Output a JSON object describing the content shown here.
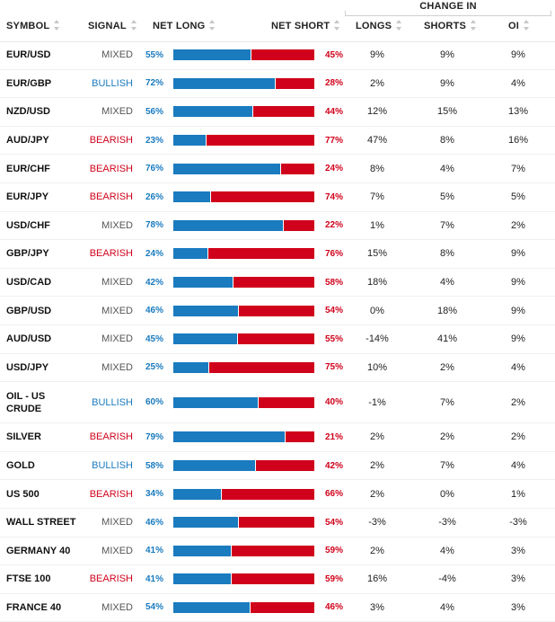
{
  "header": {
    "change_in": "CHANGE IN",
    "symbol": "SYMBOL",
    "signal": "SIGNAL",
    "net_long": "NET LONG",
    "net_short": "NET SHORT",
    "longs": "LONGS",
    "shorts": "SHORTS",
    "oi": "OI"
  },
  "colors": {
    "long": "#1a7bbf",
    "short": "#d0021b",
    "mixed": "#555555"
  },
  "rows": [
    {
      "symbol": "EUR/USD",
      "signal": "MIXED",
      "long": 55,
      "long_label": "55%",
      "short_label": "45%",
      "longs": "9%",
      "shorts": "9%",
      "oi": "9%"
    },
    {
      "symbol": "EUR/GBP",
      "signal": "BULLISH",
      "long": 72,
      "long_label": "72%",
      "short_label": "28%",
      "longs": "2%",
      "shorts": "9%",
      "oi": "4%"
    },
    {
      "symbol": "NZD/USD",
      "signal": "MIXED",
      "long": 56,
      "long_label": "56%",
      "short_label": "44%",
      "longs": "12%",
      "shorts": "15%",
      "oi": "13%"
    },
    {
      "symbol": "AUD/JPY",
      "signal": "BEARISH",
      "long": 23,
      "long_label": "23%",
      "short_label": "77%",
      "longs": "47%",
      "shorts": "8%",
      "oi": "16%"
    },
    {
      "symbol": "EUR/CHF",
      "signal": "BEARISH",
      "long": 76,
      "long_label": "76%",
      "short_label": "24%",
      "longs": "8%",
      "shorts": "4%",
      "oi": "7%"
    },
    {
      "symbol": "EUR/JPY",
      "signal": "BEARISH",
      "long": 26,
      "long_label": "26%",
      "short_label": "74%",
      "longs": "7%",
      "shorts": "5%",
      "oi": "5%"
    },
    {
      "symbol": "USD/CHF",
      "signal": "MIXED",
      "long": 78,
      "long_label": "78%",
      "short_label": "22%",
      "longs": "1%",
      "shorts": "7%",
      "oi": "2%"
    },
    {
      "symbol": "GBP/JPY",
      "signal": "BEARISH",
      "long": 24,
      "long_label": "24%",
      "short_label": "76%",
      "longs": "15%",
      "shorts": "8%",
      "oi": "9%"
    },
    {
      "symbol": "USD/CAD",
      "signal": "MIXED",
      "long": 42,
      "long_label": "42%",
      "short_label": "58%",
      "longs": "18%",
      "shorts": "4%",
      "oi": "9%"
    },
    {
      "symbol": "GBP/USD",
      "signal": "MIXED",
      "long": 46,
      "long_label": "46%",
      "short_label": "54%",
      "longs": "0%",
      "shorts": "18%",
      "oi": "9%"
    },
    {
      "symbol": "AUD/USD",
      "signal": "MIXED",
      "long": 45,
      "long_label": "45%",
      "short_label": "55%",
      "longs": "-14%",
      "shorts": "41%",
      "oi": "9%"
    },
    {
      "symbol": "USD/JPY",
      "signal": "MIXED",
      "long": 25,
      "long_label": "25%",
      "short_label": "75%",
      "longs": "10%",
      "shorts": "2%",
      "oi": "4%"
    },
    {
      "symbol": "OIL - US CRUDE",
      "signal": "BULLISH",
      "long": 60,
      "long_label": "60%",
      "short_label": "40%",
      "longs": "-1%",
      "shorts": "7%",
      "oi": "2%"
    },
    {
      "symbol": "SILVER",
      "signal": "BEARISH",
      "long": 79,
      "long_label": "79%",
      "short_label": "21%",
      "longs": "2%",
      "shorts": "2%",
      "oi": "2%"
    },
    {
      "symbol": "GOLD",
      "signal": "BULLISH",
      "long": 58,
      "long_label": "58%",
      "short_label": "42%",
      "longs": "2%",
      "shorts": "7%",
      "oi": "4%"
    },
    {
      "symbol": "US 500",
      "signal": "BEARISH",
      "long": 34,
      "long_label": "34%",
      "short_label": "66%",
      "longs": "2%",
      "shorts": "0%",
      "oi": "1%"
    },
    {
      "symbol": "WALL STREET",
      "signal": "MIXED",
      "long": 46,
      "long_label": "46%",
      "short_label": "54%",
      "longs": "-3%",
      "shorts": "-3%",
      "oi": "-3%"
    },
    {
      "symbol": "GERMANY 40",
      "signal": "MIXED",
      "long": 41,
      "long_label": "41%",
      "short_label": "59%",
      "longs": "2%",
      "shorts": "4%",
      "oi": "3%"
    },
    {
      "symbol": "FTSE 100",
      "signal": "BEARISH",
      "long": 41,
      "long_label": "41%",
      "short_label": "59%",
      "longs": "16%",
      "shorts": "-4%",
      "oi": "3%"
    },
    {
      "symbol": "FRANCE 40",
      "signal": "MIXED",
      "long": 54,
      "long_label": "54%",
      "short_label": "46%",
      "longs": "3%",
      "shorts": "4%",
      "oi": "3%"
    }
  ]
}
